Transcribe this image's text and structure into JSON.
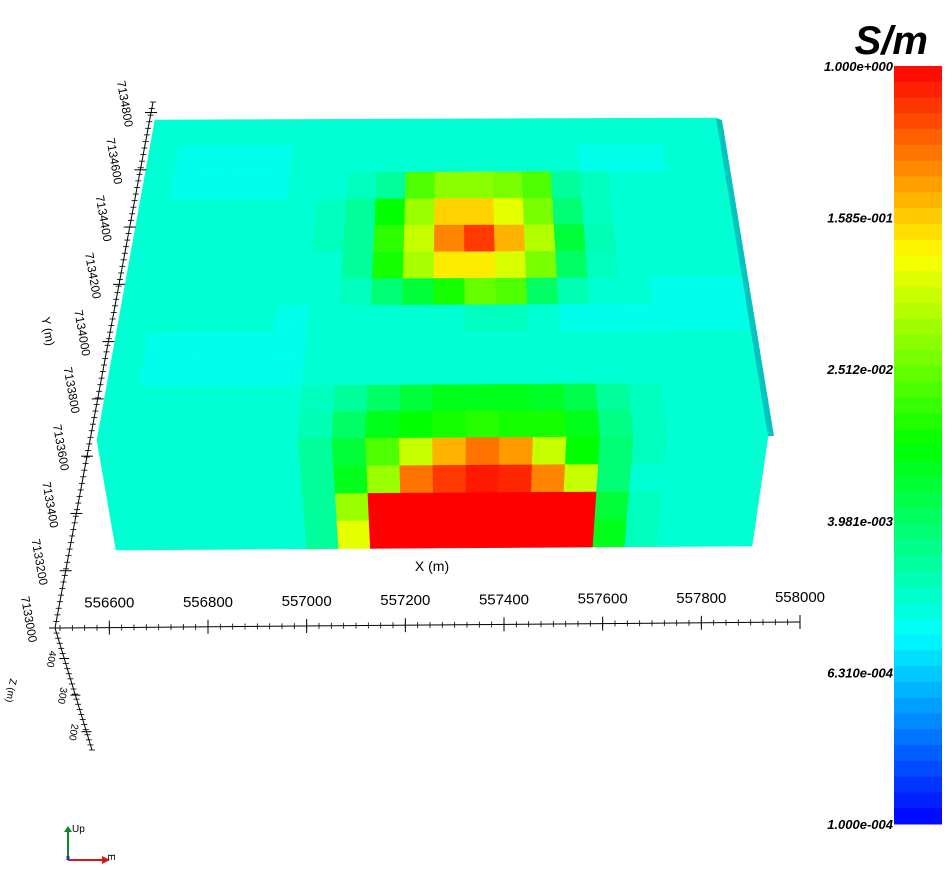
{
  "chart_data": {
    "type": "heatmap",
    "title": "",
    "colorbar": {
      "title": "S/m",
      "scale": "log",
      "range": [
        0.0001,
        1.0
      ],
      "tick_labels": [
        "1.000e+000",
        "1.585e-001",
        "2.512e-002",
        "3.981e-003",
        "6.310e-004",
        "1.000e-004"
      ],
      "tick_values": [
        1.0,
        0.1585,
        0.02512,
        0.003981,
        0.000631,
        0.0001
      ],
      "colormap": [
        "#0000ff",
        "#00ffff",
        "#00ff00",
        "#ffff00",
        "#ff0000"
      ]
    },
    "x_axis": {
      "label": "X (m)",
      "range": [
        556500,
        558000
      ],
      "tick_values": [
        556600,
        556800,
        557000,
        557200,
        557400,
        557600,
        557800,
        558000
      ],
      "tick_labels": [
        "556600",
        "556800",
        "557000",
        "557200",
        "557400",
        "557600",
        "557800",
        "558000"
      ]
    },
    "y_axis": {
      "label": "Y (m)",
      "tick_values": [
        7133000,
        7133200,
        7133400,
        7133600,
        7133800,
        7134000,
        7134200,
        7134400,
        7134600,
        7134800
      ],
      "tick_labels": [
        "7133000",
        "7133200",
        "7133400",
        "7133600",
        "7133800",
        "7134000",
        "7134200",
        "7134400",
        "7134600",
        "7134800"
      ]
    },
    "z_axis": {
      "label": "Z (m)",
      "tick_labels": [
        "400",
        "300",
        "200"
      ]
    },
    "top_face": {
      "description": "Conductivity (S/m) on the top face of the block, rows from far (north) to near (south), 20 columns west to east",
      "rows": [
        [
          0.0015,
          0.0015,
          0.0015,
          0.0015,
          0.0015,
          0.0015,
          0.0015,
          0.0015,
          0.0015,
          0.0015,
          0.0015,
          0.0015,
          0.0015,
          0.0015,
          0.0015,
          0.0015,
          0.0015,
          0.0015,
          0.0015,
          0.0015
        ],
        [
          0.0015,
          0.0012,
          0.0012,
          0.0012,
          0.0012,
          0.0015,
          0.0015,
          0.0015,
          0.0015,
          0.0015,
          0.0015,
          0.0015,
          0.0015,
          0.0015,
          0.0015,
          0.0012,
          0.0012,
          0.0012,
          0.0015,
          0.0015
        ],
        [
          0.0015,
          0.0012,
          0.0012,
          0.0012,
          0.0012,
          0.0015,
          0.0015,
          0.0018,
          0.0025,
          0.02,
          0.035,
          0.035,
          0.03,
          0.02,
          0.0025,
          0.0018,
          0.0015,
          0.0015,
          0.0015,
          0.0015
        ],
        [
          0.0015,
          0.0015,
          0.0015,
          0.0015,
          0.0015,
          0.0015,
          0.0018,
          0.0025,
          0.01,
          0.04,
          0.15,
          0.15,
          0.08,
          0.03,
          0.0035,
          0.0018,
          0.0015,
          0.0015,
          0.0015,
          0.0015
        ],
        [
          0.0015,
          0.0015,
          0.0015,
          0.0015,
          0.0015,
          0.0015,
          0.0018,
          0.0025,
          0.015,
          0.06,
          0.3,
          0.6,
          0.2,
          0.05,
          0.006,
          0.002,
          0.0015,
          0.0015,
          0.0015,
          0.0015
        ],
        [
          0.0015,
          0.0015,
          0.0015,
          0.0015,
          0.0015,
          0.0015,
          0.0015,
          0.0025,
          0.012,
          0.045,
          0.12,
          0.12,
          0.07,
          0.03,
          0.004,
          0.0018,
          0.0015,
          0.0015,
          0.0015,
          0.0015
        ],
        [
          0.0015,
          0.0015,
          0.0015,
          0.0015,
          0.0015,
          0.0015,
          0.0015,
          0.0018,
          0.0035,
          0.006,
          0.012,
          0.025,
          0.02,
          0.004,
          0.002,
          0.0015,
          0.0015,
          0.0012,
          0.0012,
          0.0012
        ],
        [
          0.0015,
          0.0015,
          0.0015,
          0.0015,
          0.0015,
          0.0012,
          0.0015,
          0.0015,
          0.0015,
          0.0015,
          0.0015,
          0.0018,
          0.0018,
          0.0015,
          0.0012,
          0.0012,
          0.0012,
          0.0012,
          0.0012,
          0.0012
        ],
        [
          0.0015,
          0.0012,
          0.0012,
          0.0012,
          0.0012,
          0.0012,
          0.0015,
          0.0015,
          0.0015,
          0.0015,
          0.0015,
          0.0015,
          0.0015,
          0.0015,
          0.0015,
          0.0015,
          0.0015,
          0.0015,
          0.0015,
          0.0015
        ],
        [
          0.0015,
          0.0012,
          0.0012,
          0.0012,
          0.0012,
          0.0012,
          0.0015,
          0.0015,
          0.0015,
          0.0015,
          0.0015,
          0.0015,
          0.0015,
          0.0015,
          0.0015,
          0.0015,
          0.0015,
          0.0015,
          0.0015,
          0.0015
        ],
        [
          0.0015,
          0.0015,
          0.0015,
          0.0015,
          0.0015,
          0.0015,
          0.0018,
          0.0025,
          0.004,
          0.006,
          0.008,
          0.008,
          0.008,
          0.007,
          0.005,
          0.0025,
          0.0018,
          0.0015,
          0.0015,
          0.0015
        ],
        [
          0.0015,
          0.0015,
          0.0015,
          0.0015,
          0.0015,
          0.0015,
          0.002,
          0.004,
          0.008,
          0.01,
          0.012,
          0.014,
          0.012,
          0.012,
          0.008,
          0.003,
          0.0018,
          0.0015,
          0.0015,
          0.0015
        ]
      ]
    },
    "front_face": {
      "description": "Conductivity (S/m) on the south face of the block, rows from top to bottom, 20 columns west to east",
      "rows": [
        [
          0.0015,
          0.0015,
          0.0015,
          0.0015,
          0.0015,
          0.0015,
          0.0025,
          0.006,
          0.02,
          0.06,
          0.2,
          0.35,
          0.25,
          0.06,
          0.01,
          0.0035,
          0.0018,
          0.0015,
          0.0015,
          0.0015
        ],
        [
          0.0015,
          0.0015,
          0.0015,
          0.0015,
          0.0015,
          0.0015,
          0.0025,
          0.008,
          0.04,
          0.35,
          0.6,
          0.8,
          0.7,
          0.3,
          0.06,
          0.0035,
          0.0015,
          0.0015,
          0.0015,
          0.0015
        ],
        [
          0.0015,
          0.0015,
          0.0015,
          0.0015,
          0.0015,
          0.0015,
          0.0025,
          0.04,
          1.0,
          1.0,
          1.0,
          1.0,
          1.0,
          1.0,
          1.0,
          0.006,
          0.0018,
          0.0015,
          0.0015,
          0.0015
        ],
        [
          0.0015,
          0.0015,
          0.0015,
          0.0015,
          0.0015,
          0.0015,
          0.0025,
          0.08,
          1.0,
          1.0,
          1.0,
          1.0,
          1.0,
          1.0,
          1.0,
          0.008,
          0.0018,
          0.0015,
          0.0015,
          0.0015
        ]
      ]
    }
  },
  "axes_widget": {
    "up_label": "Up",
    "right_label": "E"
  }
}
